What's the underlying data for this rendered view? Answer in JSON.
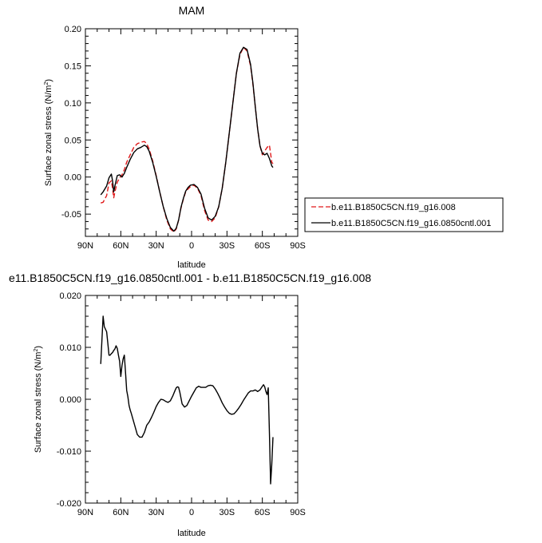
{
  "chart_data": [
    {
      "type": "line",
      "title": "MAM",
      "xlabel": "latitude",
      "ylabel": "Surface zonal stress (N/m²)",
      "ylabel_main": "Surface zonal stress (N/m",
      "ylabel_sup": "2",
      "ylabel_close": ")",
      "xlim": [
        90,
        -90
      ],
      "ylim": [
        -0.08,
        0.2
      ],
      "xticks": [
        90,
        60,
        30,
        0,
        -30,
        -60,
        -90
      ],
      "xtick_labels": [
        "90N",
        "60N",
        "30N",
        "0",
        "30S",
        "60S",
        "90S"
      ],
      "yticks": [
        -0.05,
        0.0,
        0.05,
        0.1,
        0.15,
        0.2
      ],
      "ytick_labels": [
        "-0.05",
        "0.00",
        "0.05",
        "0.10",
        "0.15",
        "0.20"
      ],
      "legend_position": "right",
      "series": [
        {
          "name": "b.e11.B1850C5CN.f19_g16.008",
          "color": "#e0191a",
          "dash": "dashed",
          "x": [
            77,
            75,
            72,
            70,
            68,
            67,
            66,
            65,
            63,
            61,
            59,
            57,
            55,
            52,
            49,
            46,
            43,
            40,
            38,
            36,
            33,
            30,
            27,
            24,
            21,
            18,
            15,
            13,
            11,
            9,
            7,
            5,
            3,
            1,
            -2,
            -5,
            -8,
            -11,
            -14,
            -17,
            -20,
            -23,
            -26,
            -29,
            -32,
            -35,
            -38,
            -41,
            -44,
            -47,
            -50,
            -52,
            -54,
            -56,
            -58,
            -60,
            -62,
            -64,
            -66,
            -68,
            -69
          ],
          "y": [
            -0.035,
            -0.034,
            -0.025,
            -0.008,
            -0.005,
            -0.015,
            -0.028,
            -0.02,
            -0.007,
            -0.001,
            0.003,
            0.01,
            0.02,
            0.03,
            0.04,
            0.045,
            0.047,
            0.048,
            0.045,
            0.038,
            0.022,
            0.002,
            -0.02,
            -0.04,
            -0.058,
            -0.07,
            -0.074,
            -0.07,
            -0.058,
            -0.042,
            -0.03,
            -0.02,
            -0.016,
            -0.013,
            -0.011,
            -0.015,
            -0.025,
            -0.045,
            -0.058,
            -0.06,
            -0.055,
            -0.04,
            -0.015,
            0.02,
            0.06,
            0.1,
            0.14,
            0.165,
            0.175,
            0.17,
            0.15,
            0.125,
            0.095,
            0.065,
            0.042,
            0.03,
            0.035,
            0.04,
            0.043,
            0.02,
            0.018
          ]
        },
        {
          "name": "b.e11.B1850C5CN.f19_g16.0850cntl.001",
          "color": "#000000",
          "dash": "solid",
          "x": [
            77,
            75,
            72,
            70,
            68,
            67,
            66,
            65,
            63,
            61,
            59,
            57,
            55,
            52,
            49,
            46,
            43,
            40,
            38,
            36,
            33,
            30,
            27,
            24,
            21,
            18,
            15,
            13,
            11,
            9,
            7,
            5,
            3,
            1,
            -2,
            -5,
            -8,
            -11,
            -14,
            -17,
            -20,
            -23,
            -26,
            -29,
            -32,
            -35,
            -38,
            -41,
            -44,
            -47,
            -50,
            -52,
            -54,
            -56,
            -58,
            -60,
            -62,
            -64,
            -66,
            -68,
            -69
          ],
          "y": [
            -0.024,
            -0.02,
            -0.012,
            -0.001,
            0.004,
            -0.005,
            -0.02,
            -0.012,
            0.002,
            0.003,
            0.0,
            0.005,
            0.013,
            0.024,
            0.033,
            0.038,
            0.04,
            0.043,
            0.041,
            0.035,
            0.02,
            0.001,
            -0.02,
            -0.04,
            -0.056,
            -0.068,
            -0.073,
            -0.069,
            -0.058,
            -0.041,
            -0.029,
            -0.019,
            -0.014,
            -0.011,
            -0.01,
            -0.014,
            -0.023,
            -0.042,
            -0.055,
            -0.058,
            -0.053,
            -0.04,
            -0.015,
            0.02,
            0.06,
            0.1,
            0.14,
            0.167,
            0.175,
            0.172,
            0.152,
            0.127,
            0.095,
            0.065,
            0.042,
            0.032,
            0.03,
            0.032,
            0.025,
            0.015,
            0.013
          ]
        }
      ]
    },
    {
      "type": "line",
      "title": "e11.B1850C5CN.f19_g16.0850cntl.001 - b.e11.B1850C5CN.f19_g16.008",
      "xlabel": "latitude",
      "ylabel": "Surface zonal stress (N/m²)",
      "ylabel_main": "Surface zonal stress (N/m",
      "ylabel_sup": "2",
      "ylabel_close": ")",
      "xlim": [
        90,
        -90
      ],
      "ylim": [
        -0.02,
        0.02
      ],
      "xticks": [
        90,
        60,
        30,
        0,
        -30,
        -60,
        -90
      ],
      "xtick_labels": [
        "90N",
        "60N",
        "30N",
        "0",
        "30S",
        "60S",
        "90S"
      ],
      "yticks": [
        -0.02,
        -0.01,
        0.0,
        0.01,
        0.02
      ],
      "ytick_labels": [
        "-0.020",
        "-0.010",
        "0.000",
        "0.010",
        "0.020"
      ],
      "series": [
        {
          "color": "#000000",
          "dash": "solid",
          "x": [
            77,
            75,
            74,
            73,
            72,
            71,
            70,
            69,
            68,
            67,
            66,
            65,
            64,
            63,
            62,
            61,
            60,
            59,
            58,
            57,
            56,
            55,
            54,
            53,
            52,
            51,
            50,
            48,
            46,
            44,
            42,
            40,
            38,
            36,
            34,
            32,
            30,
            28,
            26,
            24,
            22,
            20,
            18,
            16,
            14,
            13,
            12,
            11,
            10,
            8,
            6,
            4,
            2,
            0,
            -2,
            -4,
            -6,
            -8,
            -10,
            -12,
            -14,
            -16,
            -18,
            -20,
            -22,
            -24,
            -26,
            -28,
            -30,
            -32,
            -34,
            -36,
            -38,
            -40,
            -42,
            -44,
            -46,
            -48,
            -50,
            -52,
            -54,
            -56,
            -58,
            -60,
            -61,
            -62,
            -63,
            -64,
            -65,
            -66,
            -67,
            -68,
            -69
          ],
          "y": [
            0.0068,
            0.016,
            0.014,
            0.0135,
            0.013,
            0.0108,
            0.0085,
            0.0085,
            0.0088,
            0.009,
            0.0094,
            0.0097,
            0.0103,
            0.0098,
            0.0085,
            0.0073,
            0.0044,
            0.0065,
            0.0078,
            0.0085,
            0.0052,
            0.0017,
            0.0005,
            -0.0012,
            -0.0021,
            -0.0028,
            -0.0036,
            -0.0052,
            -0.0068,
            -0.0073,
            -0.0073,
            -0.0064,
            -0.005,
            -0.0044,
            -0.0035,
            -0.0025,
            -0.0014,
            -0.0006,
            0.0,
            -0.0001,
            -0.0004,
            -0.0006,
            -0.0003,
            0.0006,
            0.0017,
            0.0022,
            0.0024,
            0.0023,
            0.0014,
            -0.0009,
            -0.0015,
            -0.0012,
            -0.0003,
            0.0006,
            0.0014,
            0.0022,
            0.0025,
            0.0023,
            0.0023,
            0.0023,
            0.0026,
            0.0027,
            0.0026,
            0.002,
            0.0012,
            0.0003,
            -0.0007,
            -0.0015,
            -0.0022,
            -0.0027,
            -0.0029,
            -0.0028,
            -0.0023,
            -0.0017,
            -0.001,
            -0.0002,
            0.0005,
            0.0012,
            0.0016,
            0.0016,
            0.0018,
            0.0015,
            0.0018,
            0.0025,
            0.0028,
            0.0024,
            0.0015,
            0.0009,
            0.0022,
            -0.0065,
            -0.0163,
            -0.0125,
            -0.0073
          ]
        }
      ]
    }
  ]
}
